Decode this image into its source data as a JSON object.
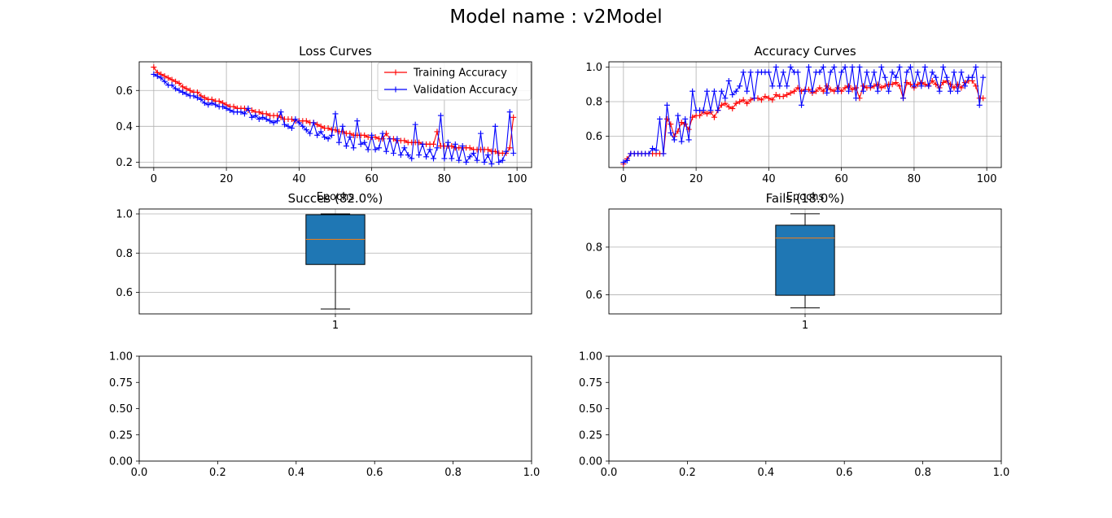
{
  "figure": {
    "suptitle": "Model name : v2Model"
  },
  "chart_data": [
    {
      "id": "loss",
      "type": "line",
      "title": "Loss Curves",
      "xlabel": "Epochs",
      "ylabel": "",
      "xlim": [
        -4,
        104
      ],
      "ylim": [
        0.17,
        0.76
      ],
      "xticks": [
        0,
        20,
        40,
        60,
        80,
        100
      ],
      "yticks": [
        0.2,
        0.4,
        0.6
      ],
      "ytick_decimals": 1,
      "grid": true,
      "legend": "top-right",
      "series": [
        {
          "name": "Training Accuracy",
          "color": "#ff0000",
          "values": [
            0.73,
            0.7,
            0.69,
            0.68,
            0.67,
            0.66,
            0.65,
            0.64,
            0.62,
            0.61,
            0.6,
            0.59,
            0.59,
            0.57,
            0.56,
            0.55,
            0.55,
            0.54,
            0.54,
            0.53,
            0.52,
            0.51,
            0.51,
            0.5,
            0.5,
            0.5,
            0.49,
            0.49,
            0.48,
            0.48,
            0.47,
            0.47,
            0.46,
            0.46,
            0.46,
            0.45,
            0.44,
            0.44,
            0.44,
            0.43,
            0.43,
            0.43,
            0.43,
            0.42,
            0.42,
            0.41,
            0.4,
            0.39,
            0.39,
            0.38,
            0.38,
            0.37,
            0.37,
            0.36,
            0.36,
            0.35,
            0.35,
            0.35,
            0.35,
            0.34,
            0.34,
            0.34,
            0.33,
            0.33,
            0.36,
            0.33,
            0.33,
            0.32,
            0.32,
            0.32,
            0.31,
            0.31,
            0.31,
            0.31,
            0.3,
            0.3,
            0.3,
            0.3,
            0.37,
            0.29,
            0.29,
            0.29,
            0.29,
            0.28,
            0.28,
            0.28,
            0.28,
            0.28,
            0.27,
            0.27,
            0.27,
            0.27,
            0.27,
            0.26,
            0.26,
            0.25,
            0.25,
            0.25,
            0.28,
            0.45
          ]
        },
        {
          "name": "Validation Accuracy",
          "color": "#0000ff",
          "values": [
            0.69,
            0.68,
            0.67,
            0.65,
            0.63,
            0.63,
            0.61,
            0.6,
            0.59,
            0.58,
            0.57,
            0.57,
            0.56,
            0.55,
            0.53,
            0.52,
            0.53,
            0.52,
            0.51,
            0.51,
            0.5,
            0.49,
            0.48,
            0.48,
            0.48,
            0.47,
            0.5,
            0.45,
            0.46,
            0.44,
            0.45,
            0.44,
            0.43,
            0.42,
            0.43,
            0.48,
            0.41,
            0.4,
            0.39,
            0.44,
            0.42,
            0.4,
            0.38,
            0.36,
            0.42,
            0.35,
            0.37,
            0.34,
            0.33,
            0.35,
            0.47,
            0.31,
            0.4,
            0.29,
            0.34,
            0.28,
            0.43,
            0.3,
            0.31,
            0.27,
            0.35,
            0.27,
            0.28,
            0.36,
            0.26,
            0.33,
            0.25,
            0.33,
            0.24,
            0.28,
            0.24,
            0.22,
            0.41,
            0.24,
            0.3,
            0.23,
            0.27,
            0.22,
            0.28,
            0.46,
            0.22,
            0.31,
            0.22,
            0.3,
            0.21,
            0.29,
            0.2,
            0.23,
            0.25,
            0.21,
            0.36,
            0.2,
            0.24,
            0.19,
            0.4,
            0.2,
            0.21,
            0.26,
            0.48,
            0.25
          ]
        }
      ]
    },
    {
      "id": "accuracy",
      "type": "line",
      "title": "Accuracy Curves",
      "xlabel": "Epochs",
      "ylabel": "",
      "xlim": [
        -4,
        104
      ],
      "ylim": [
        0.42,
        1.03
      ],
      "xticks": [
        0,
        20,
        40,
        60,
        80,
        100
      ],
      "yticks": [
        0.6,
        0.8,
        1.0
      ],
      "ytick_decimals": 1,
      "grid": true,
      "legend": "none",
      "series": [
        {
          "name": "",
          "color": "#ff0000",
          "values": [
            0.44,
            0.47,
            0.5,
            0.5,
            0.5,
            0.5,
            0.5,
            0.5,
            0.5,
            0.5,
            0.5,
            0.5,
            0.7,
            0.67,
            0.6,
            0.63,
            0.68,
            0.67,
            0.64,
            0.71,
            0.72,
            0.72,
            0.74,
            0.73,
            0.74,
            0.71,
            0.75,
            0.78,
            0.79,
            0.77,
            0.76,
            0.79,
            0.8,
            0.81,
            0.79,
            0.81,
            0.82,
            0.82,
            0.81,
            0.83,
            0.82,
            0.81,
            0.84,
            0.83,
            0.83,
            0.84,
            0.85,
            0.86,
            0.88,
            0.86,
            0.87,
            0.87,
            0.85,
            0.86,
            0.88,
            0.86,
            0.89,
            0.87,
            0.86,
            0.88,
            0.86,
            0.88,
            0.89,
            0.87,
            0.88,
            0.82,
            0.89,
            0.88,
            0.88,
            0.89,
            0.9,
            0.88,
            0.89,
            0.9,
            0.9,
            0.91,
            0.89,
            0.82,
            0.91,
            0.9,
            0.88,
            0.9,
            0.91,
            0.9,
            0.89,
            0.92,
            0.9,
            0.88,
            0.91,
            0.92,
            0.9,
            0.88,
            0.9,
            0.88,
            0.91,
            0.92,
            0.92,
            0.89,
            0.82,
            0.82
          ]
        },
        {
          "name": "",
          "color": "#0000ff",
          "values": [
            0.45,
            0.46,
            0.5,
            0.5,
            0.5,
            0.5,
            0.5,
            0.5,
            0.53,
            0.52,
            0.7,
            0.5,
            0.78,
            0.62,
            0.58,
            0.72,
            0.57,
            0.7,
            0.58,
            0.86,
            0.75,
            0.75,
            0.75,
            0.86,
            0.75,
            0.86,
            0.75,
            0.86,
            0.82,
            0.92,
            0.84,
            0.86,
            0.89,
            0.97,
            0.86,
            0.97,
            0.82,
            0.97,
            0.97,
            0.97,
            0.97,
            0.89,
            1.0,
            0.89,
            0.97,
            0.89,
            1.0,
            0.97,
            0.97,
            0.78,
            0.86,
            1.0,
            0.86,
            0.97,
            0.97,
            1.0,
            0.85,
            0.97,
            1.0,
            0.86,
            0.97,
            1.0,
            0.86,
            1.0,
            0.82,
            1.0,
            0.86,
            0.97,
            0.89,
            0.97,
            0.86,
            1.0,
            0.94,
            0.86,
            0.97,
            0.94,
            1.0,
            0.82,
            0.97,
            1.0,
            0.89,
            0.97,
            0.89,
            1.0,
            0.89,
            0.97,
            0.94,
            0.86,
            1.0,
            0.94,
            0.86,
            0.97,
            0.86,
            0.97,
            0.89,
            0.94,
            0.94,
            1.0,
            0.78,
            0.94
          ]
        }
      ]
    },
    {
      "id": "success",
      "type": "boxplot",
      "title": "Succes (82.0%)",
      "xlim": [
        0.5,
        1.5
      ],
      "ylim": [
        0.49,
        1.025
      ],
      "xticks": [
        1
      ],
      "yticks": [
        0.6,
        0.8,
        1.0
      ],
      "ytick_decimals": 1,
      "grid": true,
      "box": {
        "position": 1,
        "min": 0.515,
        "q1": 0.742,
        "median": 0.87,
        "q3": 0.996,
        "max": 1.0,
        "fill": "#1f77b4",
        "median_color": "#ff7f0e"
      }
    },
    {
      "id": "fails",
      "type": "boxplot",
      "title": "Fails (18.0%)",
      "xlim": [
        0.5,
        1.5
      ],
      "ylim": [
        0.52,
        0.96
      ],
      "xticks": [
        1
      ],
      "yticks": [
        0.6,
        0.8
      ],
      "ytick_decimals": 1,
      "grid": true,
      "box": {
        "position": 1,
        "min": 0.545,
        "q1": 0.598,
        "median": 0.838,
        "q3": 0.892,
        "max": 0.94,
        "fill": "#1f77b4",
        "median_color": "#ff7f0e"
      }
    },
    {
      "id": "empty1",
      "type": "empty",
      "title": "",
      "xlim": [
        0,
        1
      ],
      "ylim": [
        0,
        1
      ],
      "xticks": [
        0,
        0.2,
        0.4,
        0.6,
        0.8,
        1.0
      ],
      "yticks": [
        0,
        0.25,
        0.5,
        0.75,
        1.0
      ],
      "xtick_decimals": 1,
      "ytick_decimals": 2,
      "grid": false
    },
    {
      "id": "empty2",
      "type": "empty",
      "title": "",
      "xlim": [
        0,
        1
      ],
      "ylim": [
        0,
        1
      ],
      "xticks": [
        0,
        0.2,
        0.4,
        0.6,
        0.8,
        1.0
      ],
      "yticks": [
        0,
        0.25,
        0.5,
        0.75,
        1.0
      ],
      "xtick_decimals": 1,
      "ytick_decimals": 2,
      "grid": false
    }
  ]
}
